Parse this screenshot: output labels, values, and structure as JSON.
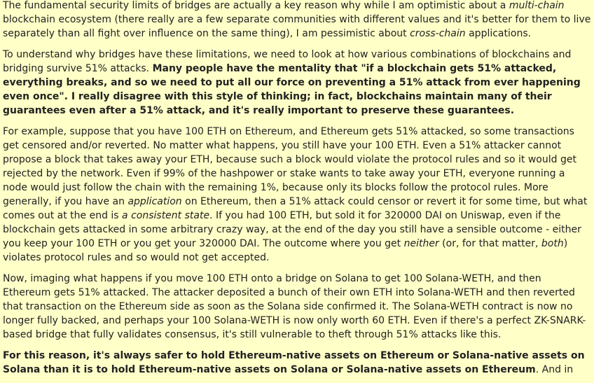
{
  "article": {
    "paragraphs": [
      {
        "runs": [
          {
            "style": "normal",
            "text": "The fundamental security limits of bridges are actually a key reason why while I am optimistic about a "
          },
          {
            "style": "italic",
            "text": "multi-chain"
          },
          {
            "style": "normal",
            "text": " blockchain ecosystem (there really are a few separate communities with different values and it's better for them to live separately than all fight over influence on the same thing), I am pessimistic about "
          },
          {
            "style": "italic",
            "text": "cross-chain"
          },
          {
            "style": "normal",
            "text": " applications."
          }
        ]
      },
      {
        "runs": [
          {
            "style": "normal",
            "text": "To understand why bridges have these limitations, we need to look at how various combinations of blockchains and bridging survive 51% attacks. "
          },
          {
            "style": "bold",
            "text": "Many people have the mentality that \"if a blockchain gets 51% attacked, everything breaks, and so we need to put all our force on preventing a 51% attack from ever happening even once\". I really disagree with this style of thinking; in fact, blockchains maintain many of their guarantees even after a 51% attack, and it's really important to preserve these guarantees."
          }
        ]
      },
      {
        "runs": [
          {
            "style": "normal",
            "text": "For example, suppose that you have 100 ETH on Ethereum, and Ethereum gets 51% attacked, so some transactions get censored and/or reverted. No matter what happens, you still have your 100 ETH. Even a 51% attacker cannot propose a block that takes away your ETH, because such a block would violate the protocol rules and so it would get rejected by the network. Even if 99% of the hashpower or stake wants to take away your ETH, everyone running a node would just follow the chain with the remaining 1%, because only its blocks follow the protocol rules. More generally, if you have an "
          },
          {
            "style": "italic",
            "text": "application"
          },
          {
            "style": "normal",
            "text": " on Ethereum, then a 51% attack could censor or revert it for some time, but what comes out at the end is "
          },
          {
            "style": "italic",
            "text": "a consistent state"
          },
          {
            "style": "normal",
            "text": ". If you had 100 ETH, but sold it for 320000 DAI on Uniswap, even if the blockchain gets attacked in some arbitrary crazy way, at the end of the day you still have a sensible outcome - either you keep your 100 ETH or you get your 320000 DAI. The outcome where you get "
          },
          {
            "style": "italic",
            "text": "neither"
          },
          {
            "style": "normal",
            "text": " (or, for that matter, "
          },
          {
            "style": "italic",
            "text": "both"
          },
          {
            "style": "normal",
            "text": ") violates protocol rules and so would not get accepted."
          }
        ]
      },
      {
        "runs": [
          {
            "style": "normal",
            "text": "Now, imaging what happens if you move 100 ETH onto a bridge on Solana to get 100 Solana-WETH, and then Ethereum gets 51% attacked. The attacker deposited a bunch of their own ETH into Solana-WETH and then reverted that transaction on the Ethereum side as soon as the Solana side confirmed it. The Solana-WETH contract is now no longer fully backed, and perhaps your 100 Solana-WETH is now only worth 60 ETH. Even if there's a perfect ZK-SNARK-based bridge that fully validates consensus, it's still vulnerable to theft through 51% attacks like this."
          }
        ]
      },
      {
        "runs": [
          {
            "style": "bold",
            "text": "For this reason, it's always safer to hold Ethereum-native assets on Ethereum or Solana-native assets on Solana than it is to hold Ethereum-native assets on Solana or Solana-native assets on Ethereum"
          },
          {
            "style": "normal",
            "text": ". And in"
          }
        ]
      }
    ]
  }
}
